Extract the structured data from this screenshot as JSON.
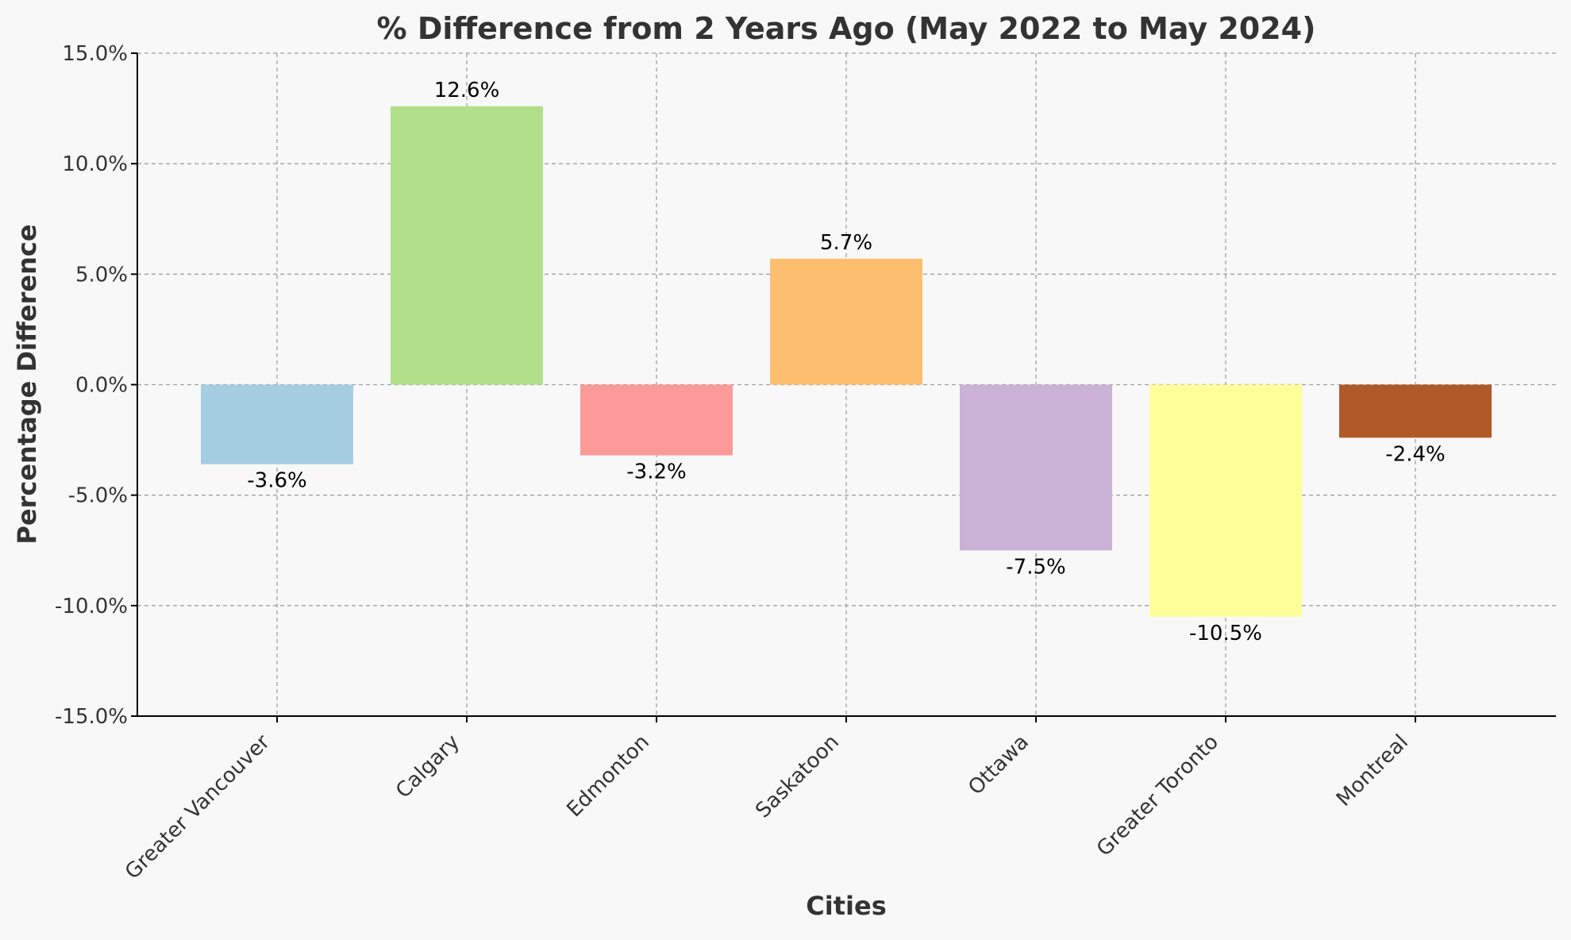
{
  "chart_data": {
    "type": "bar",
    "title": "% Difference from 2 Years Ago (May 2022 to May 2024)",
    "xlabel": "Cities",
    "ylabel": "Percentage Difference",
    "categories": [
      "Greater Vancouver",
      "Calgary",
      "Edmonton",
      "Saskatoon",
      "Ottawa",
      "Greater Toronto",
      "Montreal"
    ],
    "values": [
      -3.6,
      12.6,
      -3.2,
      5.7,
      -7.5,
      -10.5,
      -2.4
    ],
    "value_labels": [
      "-3.6%",
      "12.6%",
      "-3.2%",
      "5.7%",
      "-7.5%",
      "-10.5%",
      "-2.4%"
    ],
    "colors": [
      "#a6cee3",
      "#b2df8a",
      "#fb9a99",
      "#fdbf6f",
      "#cab2d6",
      "#ffff99",
      "#b15928"
    ],
    "ylim": [
      -15,
      15
    ],
    "yticks": [
      -15,
      -10,
      -5,
      0,
      5,
      10,
      15
    ],
    "ytick_labels": [
      "-15.0%",
      "-10.0%",
      "-5.0%",
      "0.0%",
      "5.0%",
      "10.0%",
      "15.0%"
    ],
    "grid": true,
    "background": "#f8f8f8"
  }
}
